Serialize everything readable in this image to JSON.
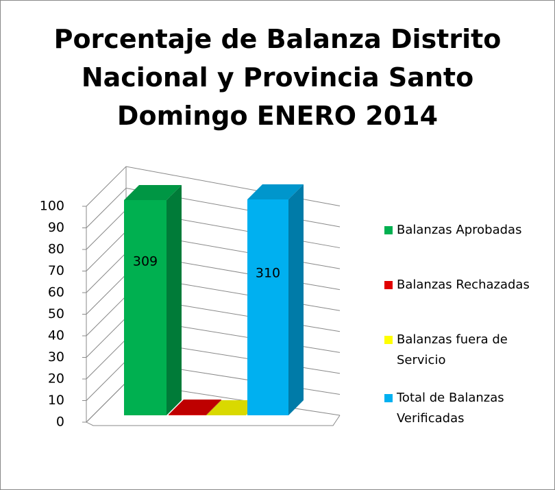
{
  "chart_data": {
    "type": "bar3d",
    "title": "Porcentaje de Balanza Distrito\nNacional y  Provincia Santo\nDomingo ENERO 2014",
    "categories": [
      "Balanzas Aprobadas",
      "Balanzas Rechazadas",
      "Balanzas fuera de Servicio",
      "Total de Balanzas Verificadas"
    ],
    "values": [
      99.7,
      0.3,
      0,
      100
    ],
    "colors": [
      "#00b050",
      "#e00000",
      "#ffff00",
      "#00b0f0"
    ],
    "annotations": [
      {
        "text": "309",
        "category": 0
      },
      {
        "text": "310",
        "category": 3
      }
    ],
    "ylim": [
      0,
      100
    ],
    "yticks": [
      0,
      10,
      20,
      30,
      40,
      50,
      60,
      70,
      80,
      90,
      100
    ],
    "grid": true,
    "legend": "right"
  }
}
